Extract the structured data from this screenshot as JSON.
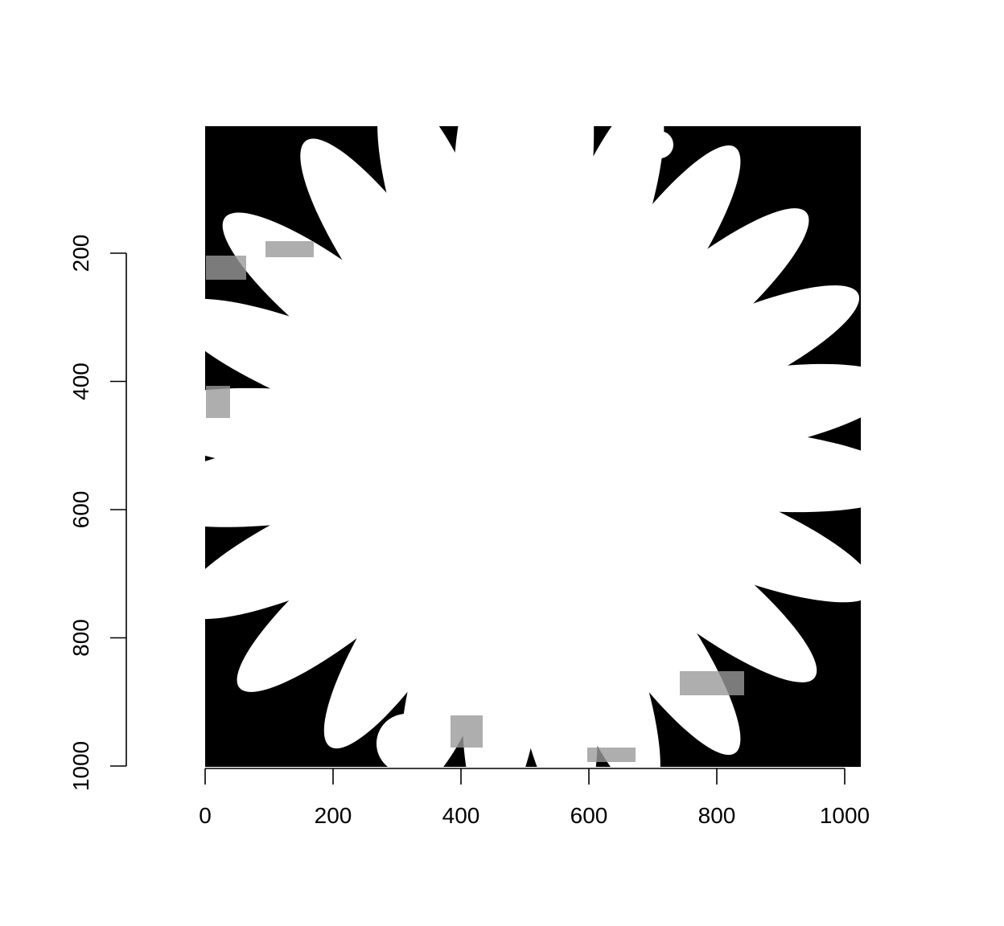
{
  "image": {
    "description_type": "thresholded black-and-white flower image plotted with axes",
    "background_color": "#000000",
    "foreground_color": "#ffffff"
  },
  "axes": {
    "x": {
      "ticks": [
        0,
        200,
        400,
        600,
        800,
        1000
      ],
      "labels": [
        "0",
        "200",
        "400",
        "600",
        "800",
        "1000"
      ],
      "range": [
        0,
        1024
      ]
    },
    "y": {
      "ticks": [
        200,
        400,
        600,
        800,
        1000
      ],
      "labels": [
        "200",
        "400",
        "600",
        "800",
        "1000"
      ],
      "range": [
        200,
        1000
      ]
    }
  }
}
